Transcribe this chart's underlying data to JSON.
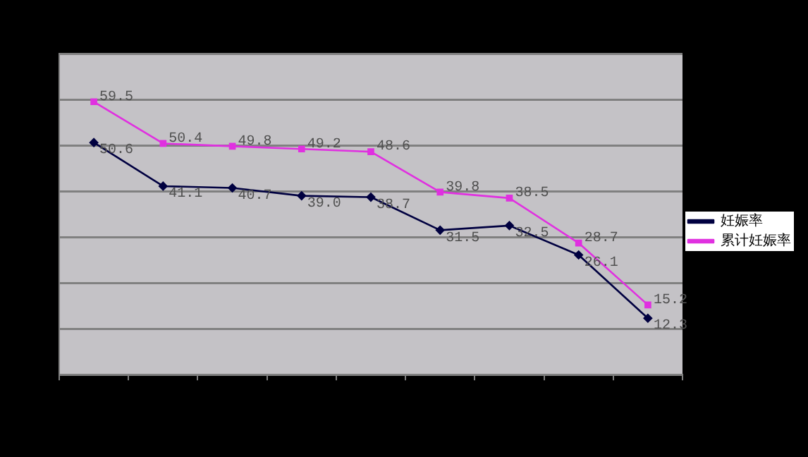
{
  "chart_data": {
    "type": "line",
    "categories": [
      null,
      null,
      null,
      null,
      null,
      null,
      null,
      null,
      null
    ],
    "series": [
      {
        "name": "妊娠率",
        "color": "#000040",
        "values": [
          50.6,
          41.1,
          40.7,
          39.0,
          38.7,
          31.5,
          32.5,
          26.1,
          12.3
        ],
        "value_labels": [
          "50.6",
          "41.1",
          "40.7",
          "39.0",
          "38.7",
          "31.5",
          "32.5",
          "26.1",
          "12.3"
        ],
        "marker": "diamond"
      },
      {
        "name": "累计妊娠率",
        "color": "#e030e0",
        "values": [
          59.5,
          50.4,
          49.8,
          49.2,
          48.6,
          39.8,
          38.5,
          28.7,
          15.2
        ],
        "value_labels": [
          "59.5",
          "50.4",
          "49.8",
          "49.2",
          "48.6",
          "39.8",
          "38.5",
          "28.7",
          "15.2"
        ],
        "marker": "square"
      }
    ],
    "ylim": [
      0,
      70
    ],
    "yticks": [
      {
        "value": 0,
        "label": null
      },
      {
        "value": 10,
        "label": null
      },
      {
        "value": 20,
        "label": null
      },
      {
        "value": 30,
        "label": null
      },
      {
        "value": 40,
        "label": null
      },
      {
        "value": 50,
        "label": null
      },
      {
        "value": 60,
        "label": null
      },
      {
        "value": 70,
        "label": null
      }
    ],
    "grid": "y",
    "legend": "right",
    "line_style": "solid"
  }
}
